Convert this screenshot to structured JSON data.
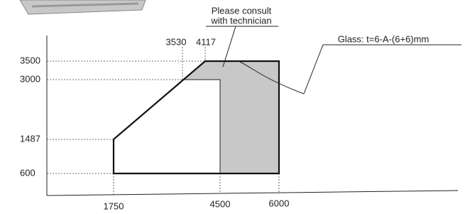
{
  "callouts": {
    "consult": [
      "Please consult",
      "with technician"
    ],
    "glass": "Glass: t=6-A-(6+6)mm"
  },
  "height_labels": [
    "3500",
    "3000",
    "1487",
    "600"
  ],
  "width_labels": [
    "1750",
    "4500",
    "6000"
  ],
  "top_labels": [
    "3530",
    "4117"
  ]
}
